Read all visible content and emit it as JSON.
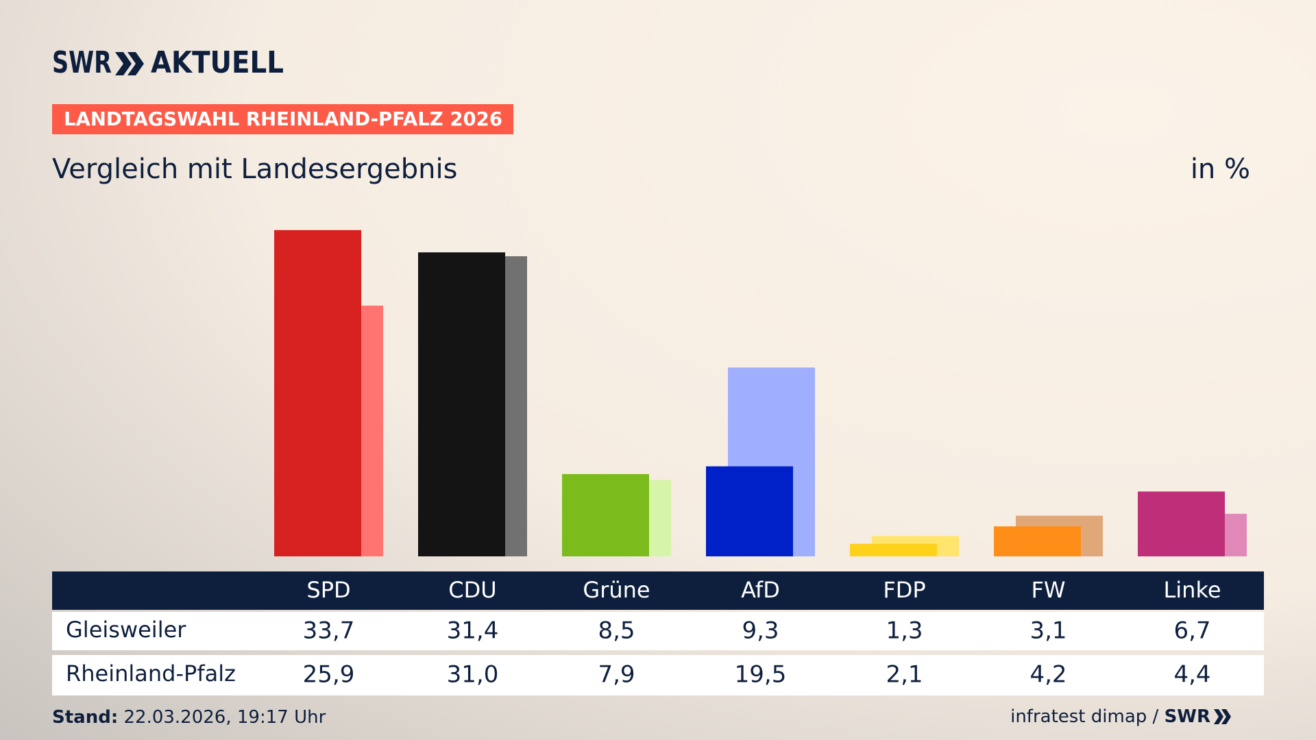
{
  "header": {
    "brand": "SWR",
    "product": "AKTUELL",
    "kicker": "LANDTAGSWAHL RHEINLAND-PFALZ 2026"
  },
  "chart_data": {
    "type": "bar",
    "title": "Vergleich mit Landesergebnis",
    "unit": "in %",
    "categories": [
      "SPD",
      "CDU",
      "Grüne",
      "AfD",
      "FDP",
      "FW",
      "Linke"
    ],
    "series": [
      {
        "name": "Gleisweiler",
        "values": [
          33.7,
          31.4,
          8.5,
          9.3,
          1.3,
          3.1,
          6.7
        ],
        "value_labels": [
          "33,7",
          "31,4",
          "8,5",
          "9,3",
          "1,3",
          "3,1",
          "6,7"
        ],
        "colors": [
          "#d72120",
          "#141414",
          "#7bbc1c",
          "#0020c8",
          "#ffd21a",
          "#ff8e18",
          "#bf2e78"
        ]
      },
      {
        "name": "Rheinland-Pfalz",
        "values": [
          25.9,
          31.0,
          7.9,
          19.5,
          2.1,
          4.2,
          4.4
        ],
        "value_labels": [
          "25,9",
          "31,0",
          "7,9",
          "19,5",
          "2,1",
          "4,2",
          "4,4"
        ],
        "colors": [
          "#ff7470",
          "#717171",
          "#d6f5a8",
          "#a0aefe",
          "#ffe46e",
          "#e0a878",
          "#e089b9"
        ]
      }
    ]
  },
  "footer": {
    "stand_label": "Stand:",
    "stand": "22.03.2026, 19:17 Uhr",
    "source": "infratest dimap /",
    "brand": "SWR"
  }
}
